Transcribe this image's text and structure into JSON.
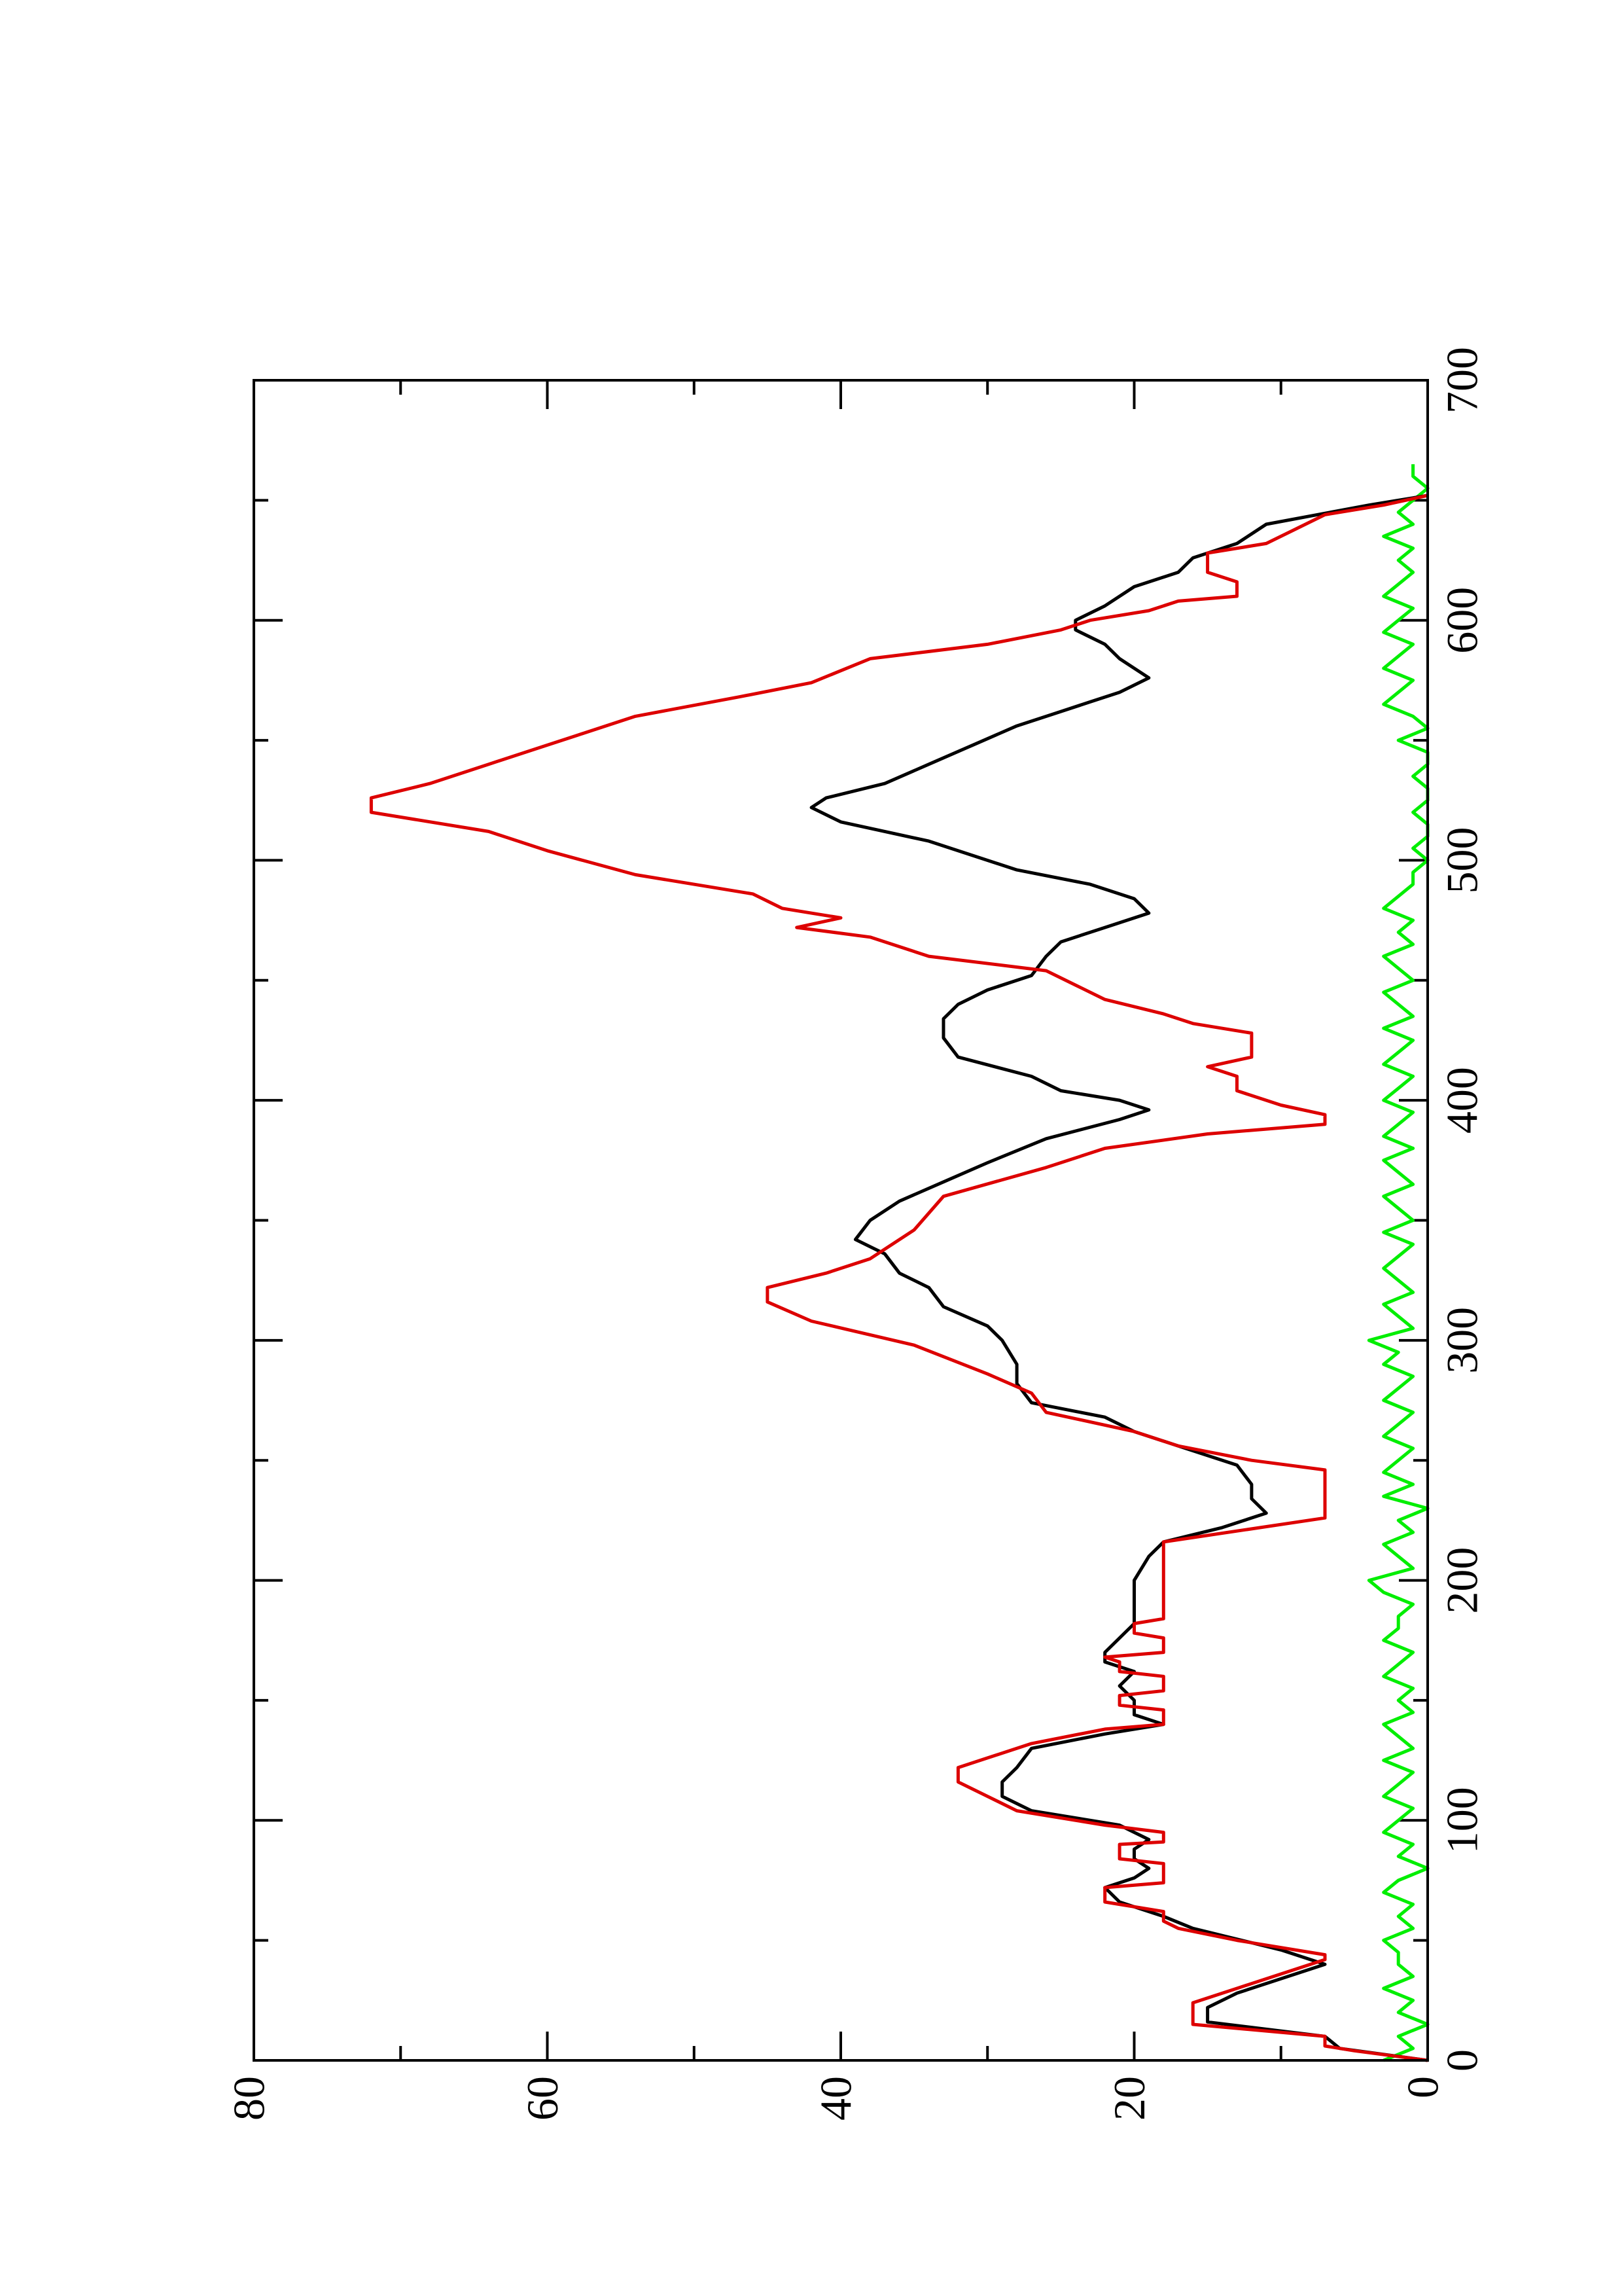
{
  "chart_data": {
    "type": "line",
    "orientation": "rotated",
    "xlim": [
      0,
      700
    ],
    "xticks": [
      0,
      100,
      200,
      300,
      400,
      500,
      600,
      700
    ],
    "xminorticks": [
      50,
      150,
      250,
      350,
      450,
      550,
      650
    ],
    "ylim": [
      0,
      80
    ],
    "yticks": [
      0,
      20,
      40,
      60,
      80
    ],
    "yminorticks": [
      10,
      30,
      50,
      70
    ],
    "series": [
      {
        "color": "#00ee00",
        "x": [
          0,
          5,
          10,
          15,
          20,
          25,
          30,
          35,
          40,
          45,
          50,
          55,
          60,
          65,
          70,
          75,
          80,
          85,
          90,
          95,
          100,
          105,
          110,
          115,
          120,
          125,
          130,
          135,
          140,
          145,
          150,
          155,
          160,
          165,
          170,
          175,
          180,
          185,
          190,
          195,
          200,
          205,
          210,
          215,
          220,
          225,
          230,
          235,
          240,
          245,
          250,
          255,
          260,
          265,
          270,
          275,
          280,
          285,
          290,
          295,
          300,
          305,
          310,
          315,
          320,
          325,
          330,
          335,
          340,
          345,
          350,
          355,
          360,
          365,
          370,
          375,
          380,
          385,
          390,
          395,
          400,
          405,
          410,
          415,
          420,
          425,
          430,
          435,
          440,
          445,
          450,
          455,
          460,
          465,
          470,
          475,
          480,
          485,
          490,
          495,
          500,
          505,
          510,
          515,
          520,
          525,
          530,
          535,
          540,
          545,
          550,
          555,
          560,
          565,
          570,
          575,
          580,
          585,
          590,
          595,
          600,
          605,
          610,
          615,
          620,
          625,
          630,
          635,
          640,
          645,
          650,
          655,
          660,
          665
        ],
        "values": [
          3,
          1,
          2,
          0,
          2,
          1,
          3,
          1,
          2,
          2,
          3,
          1,
          2,
          1,
          3,
          2,
          0,
          2,
          1,
          3,
          2,
          1,
          3,
          2,
          1,
          3,
          1,
          2,
          3,
          1,
          2,
          1,
          3,
          2,
          1,
          3,
          2,
          2,
          1,
          3,
          4,
          1,
          2,
          3,
          1,
          2,
          0,
          3,
          1,
          3,
          2,
          1,
          3,
          2,
          1,
          3,
          2,
          1,
          3,
          2,
          4,
          1,
          2,
          3,
          1,
          2,
          3,
          2,
          1,
          3,
          1,
          2,
          3,
          1,
          2,
          3,
          1,
          3,
          2,
          1,
          3,
          2,
          1,
          3,
          2,
          1,
          3,
          1,
          2,
          3,
          1,
          2,
          3,
          1,
          2,
          1,
          3,
          2,
          1,
          1,
          0,
          1,
          0,
          0,
          1,
          0,
          0,
          1,
          0,
          0,
          2,
          0,
          1,
          3,
          2,
          1,
          3,
          2,
          1,
          3,
          2,
          1,
          3,
          2,
          1,
          2,
          1,
          3,
          1,
          2,
          1,
          0,
          1,
          1
        ]
      },
      {
        "color": "#000000",
        "x": [
          0,
          5,
          10,
          16,
          22,
          28,
          40,
          46,
          55,
          60,
          66,
          72,
          76,
          80,
          84,
          88,
          92,
          98,
          104,
          110,
          116,
          122,
          130,
          136,
          140,
          144,
          150,
          156,
          162,
          166,
          170,
          176,
          182,
          190,
          200,
          210,
          216,
          222,
          228,
          234,
          240,
          248,
          256,
          262,
          268,
          274,
          282,
          290,
          300,
          306,
          314,
          322,
          328,
          336,
          342,
          350,
          358,
          366,
          374,
          384,
          392,
          396,
          400,
          404,
          410,
          418,
          426,
          434,
          440,
          446,
          452,
          460,
          466,
          472,
          478,
          484,
          490,
          496,
          502,
          508,
          516,
          522,
          526,
          532,
          540,
          548,
          556,
          562,
          566,
          570,
          576,
          584,
          590,
          596,
          600,
          606,
          614,
          620,
          626,
          632,
          640,
          648,
          652
        ],
        "values": [
          0,
          6,
          7,
          15,
          15,
          13,
          7,
          10,
          16,
          18,
          21,
          22,
          20,
          19,
          20,
          20,
          19,
          21,
          27,
          29,
          29,
          28,
          27,
          22,
          18,
          20,
          20,
          21,
          20,
          22,
          22,
          21,
          20,
          20,
          20,
          19,
          18,
          14,
          11,
          12,
          12,
          13,
          17,
          20,
          22,
          27,
          28,
          28,
          29,
          30,
          33,
          34,
          36,
          37,
          39,
          38,
          36,
          33,
          30,
          26,
          21,
          19,
          21,
          25,
          27,
          32,
          33,
          33,
          32,
          30,
          27,
          26,
          25,
          22,
          19,
          20,
          23,
          28,
          31,
          34,
          40,
          42,
          41,
          37,
          34,
          31,
          28,
          25,
          23,
          21,
          19,
          21,
          22,
          24,
          24,
          22,
          20,
          17,
          16,
          13,
          11,
          4,
          0
        ]
      },
      {
        "color": "#dd0000",
        "x": [
          0,
          4,
          6,
          10,
          15,
          24,
          30,
          42,
          44,
          50,
          55,
          58,
          62,
          66,
          72,
          74,
          82,
          84,
          90,
          91,
          95,
          98,
          104,
          110,
          116,
          122,
          126,
          132,
          138,
          140,
          146,
          148,
          152,
          154,
          160,
          162,
          166,
          168,
          170,
          176,
          178,
          182,
          184,
          200,
          216,
          226,
          246,
          250,
          256,
          262,
          270,
          278,
          286,
          298,
          308,
          316,
          322,
          328,
          334,
          346,
          360,
          372,
          380,
          386,
          390,
          394,
          398,
          404,
          410,
          414,
          418,
          428,
          432,
          436,
          442,
          448,
          454,
          460,
          468,
          472,
          476,
          480,
          486,
          494,
          504,
          512,
          520,
          526,
          532,
          540,
          552,
          560,
          568,
          574,
          584,
          590,
          596,
          600,
          604,
          608,
          610,
          616,
          620,
          628,
          632,
          638,
          644,
          648,
          652
        ],
        "values": [
          0,
          5,
          7,
          7,
          16,
          16,
          13,
          7,
          7,
          13,
          17,
          18,
          18,
          22,
          22,
          18,
          18,
          21,
          21,
          18,
          18,
          22,
          28,
          30,
          32,
          32,
          30,
          27,
          22,
          18,
          18,
          21,
          21,
          18,
          18,
          21,
          21,
          22,
          18,
          18,
          20,
          20,
          18,
          18,
          18,
          7,
          7,
          12,
          17,
          20,
          26,
          27,
          30,
          35,
          42,
          45,
          45,
          41,
          38,
          35,
          33,
          26,
          22,
          15,
          7,
          7,
          10,
          13,
          13,
          15,
          12,
          12,
          16,
          18,
          22,
          24,
          26,
          34,
          38,
          43,
          40,
          44,
          46,
          54,
          60,
          64,
          72,
          72,
          68,
          64,
          58,
          54,
          47,
          42,
          38,
          30,
          25,
          23,
          19,
          17,
          13,
          13,
          15,
          15,
          11,
          9,
          7,
          3,
          0
        ]
      }
    ]
  }
}
